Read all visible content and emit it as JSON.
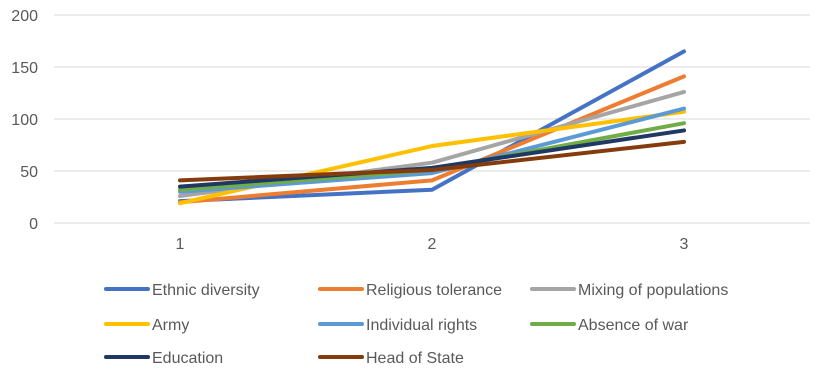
{
  "chart_data": {
    "type": "line",
    "categories": [
      "1",
      "2",
      "3"
    ],
    "ylim": [
      0,
      200
    ],
    "yticks": [
      0,
      50,
      100,
      150,
      200
    ],
    "grid": true,
    "legend_position": "bottom",
    "series": [
      {
        "name": "Ethnic diversity",
        "color": "#4472C4",
        "values": [
          21,
          32,
          165
        ]
      },
      {
        "name": "Religious tolerance",
        "color": "#ED7D31",
        "values": [
          20,
          41,
          141
        ]
      },
      {
        "name": "Mixing of populations",
        "color": "#A5A5A5",
        "values": [
          26,
          58,
          126
        ]
      },
      {
        "name": "Army",
        "color": "#FFC000",
        "values": [
          19,
          74,
          107
        ]
      },
      {
        "name": "Individual rights",
        "color": "#5B9BD5",
        "values": [
          30,
          48,
          110
        ]
      },
      {
        "name": "Absence of war",
        "color": "#70AD47",
        "values": [
          32,
          51,
          96
        ]
      },
      {
        "name": "Education",
        "color": "#203864",
        "values": [
          35,
          53,
          89
        ]
      },
      {
        "name": "Head of State",
        "color": "#843C0C",
        "values": [
          41,
          51,
          78
        ]
      }
    ]
  }
}
